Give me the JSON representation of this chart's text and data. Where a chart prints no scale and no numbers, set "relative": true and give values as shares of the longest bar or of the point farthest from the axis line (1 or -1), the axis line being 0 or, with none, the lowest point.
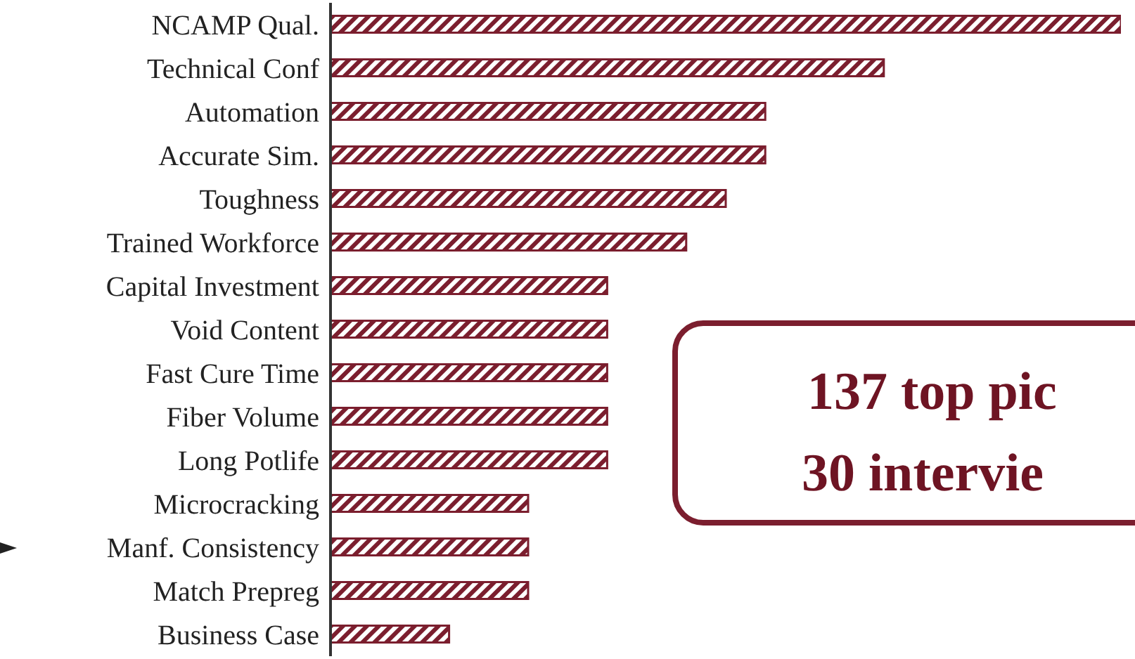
{
  "chart_data": {
    "type": "bar",
    "orientation": "horizontal",
    "relative": true,
    "categories": [
      "NCAMP Qual.",
      "Technical Conf",
      "Automation",
      "Accurate Sim.",
      "Toughness",
      "Trained Workforce",
      "Capital Investment",
      "Void Content",
      "Fast Cure Time",
      "Fiber Volume",
      "Long Potlife",
      "Microcracking",
      "Manf. Consistency",
      "Match Prepreg",
      "Business Case"
    ],
    "series": [
      {
        "color": "#7b1e2e",
        "values": [
          1,
          0.7,
          0.55,
          0.55,
          0.5,
          0.45,
          0.35,
          0.35,
          0.35,
          0.35,
          0.35,
          0.25,
          0.25,
          0.25,
          0.15
        ]
      }
    ],
    "annotations": [
      "137 top pic",
      "30 intervie"
    ]
  }
}
